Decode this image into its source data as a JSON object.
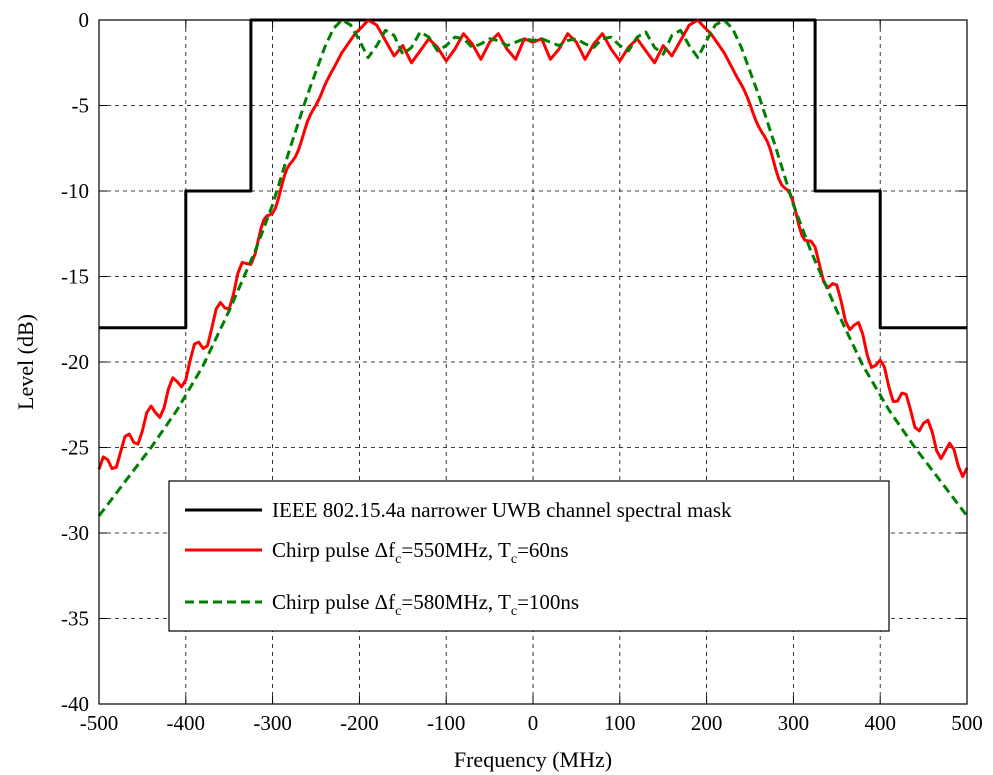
{
  "chart_data": {
    "type": "line",
    "title": "",
    "xlabel": "Frequency (MHz)",
    "ylabel": "Level (dB)",
    "xlim": [
      -500,
      500
    ],
    "ylim": [
      -40,
      0
    ],
    "xticks": [
      -500,
      -400,
      -300,
      -200,
      -100,
      0,
      100,
      200,
      300,
      400,
      500
    ],
    "yticks": [
      0,
      -5,
      -10,
      -15,
      -20,
      -25,
      -30,
      -35,
      -40
    ],
    "grid": true,
    "legend": {
      "placement": "lower-center",
      "entries": [
        {
          "main": "IEEE 802.15.4a narrower UWB channel spectral mask",
          "pre": "",
          "sub": "",
          "post": "",
          "sub2": "",
          "post2": ""
        },
        {
          "main": "",
          "pre": "Chirp pulse Δf",
          "sub": "c",
          "post": "=550MHz, T",
          "sub2": "c",
          "post2": "=60ns"
        },
        {
          "main": "",
          "pre": "Chirp pulse Δf",
          "sub": "c",
          "post": "=580MHz, T",
          "sub2": "c",
          "post2": "=100ns"
        }
      ]
    },
    "series": [
      {
        "color": "#000000",
        "style": "solid",
        "x": [
          -500,
          -400,
          -400,
          -325,
          -325,
          325,
          325,
          400,
          400,
          500
        ],
        "y": [
          -18,
          -18,
          -10,
          -10,
          0,
          0,
          -10,
          -10,
          -18,
          -18
        ]
      },
      {
        "color": "#ff0000",
        "style": "solid",
        "ripple": 0.7,
        "x": [
          -500,
          -470,
          -440,
          -410,
          -380,
          -350,
          -320,
          -300,
          -280,
          -260,
          -240,
          -220,
          -205,
          -195,
          -190,
          -180,
          -170,
          -160,
          -150,
          -140,
          -130,
          -120,
          -110,
          -100,
          -90,
          -80,
          -70,
          -60,
          -50,
          -40,
          -30,
          -20,
          -10,
          0,
          10,
          20,
          30,
          40,
          50,
          60,
          70,
          80,
          90,
          100,
          110,
          120,
          130,
          140,
          150,
          160,
          170,
          180,
          190,
          195,
          205,
          220,
          240,
          260,
          280,
          300,
          320,
          350,
          380,
          410,
          440,
          470,
          500
        ],
        "y": [
          -26.5,
          -25,
          -23.2,
          -21.3,
          -18.8,
          -16.2,
          -13.3,
          -11,
          -8.6,
          -6.1,
          -3.8,
          -1.9,
          -0.8,
          -0.3,
          0,
          -0.3,
          -1.2,
          -2.1,
          -1.5,
          -2.5,
          -1.8,
          -1.1,
          -1.6,
          -2.4,
          -1.7,
          -0.8,
          -1.4,
          -2.3,
          -1.3,
          -0.8,
          -1.7,
          -2.3,
          -1.1,
          -1.3,
          -1.1,
          -2.3,
          -1.7,
          -0.8,
          -1.3,
          -2.3,
          -1.4,
          -0.8,
          -1.7,
          -2.4,
          -1.6,
          -1.1,
          -1.8,
          -2.5,
          -1.5,
          -2.1,
          -1.2,
          -0.3,
          0,
          -0.3,
          -0.8,
          -1.9,
          -3.8,
          -6.1,
          -8.6,
          -11,
          -13.3,
          -16.2,
          -18.8,
          -21.3,
          -23.2,
          -25,
          -26.2
        ]
      },
      {
        "color": "#008000",
        "style": "dashed",
        "x": [
          -500,
          -470,
          -440,
          -410,
          -380,
          -350,
          -320,
          -300,
          -280,
          -260,
          -250,
          -240,
          -230,
          -220,
          -210,
          -200,
          -190,
          -180,
          -170,
          -160,
          -150,
          -140,
          -130,
          -120,
          -110,
          -100,
          -90,
          -80,
          -70,
          -60,
          -50,
          -40,
          -30,
          -20,
          -10,
          0,
          10,
          20,
          30,
          40,
          50,
          60,
          70,
          80,
          90,
          100,
          110,
          120,
          130,
          140,
          150,
          160,
          170,
          180,
          190,
          200,
          210,
          220,
          230,
          240,
          250,
          260,
          280,
          300,
          320,
          350,
          380,
          410,
          440,
          470,
          500
        ],
        "y": [
          -29,
          -27,
          -25,
          -22.8,
          -20.2,
          -17,
          -13.5,
          -10.8,
          -7.5,
          -4.4,
          -3,
          -1.6,
          -0.5,
          0,
          -0.3,
          -1.2,
          -2.2,
          -1.5,
          -0.6,
          -0.9,
          -2,
          -1.6,
          -0.7,
          -1,
          -1.8,
          -1.5,
          -1,
          -1.1,
          -1.6,
          -1.4,
          -1.1,
          -1.2,
          -1.5,
          -1.3,
          -1.1,
          -1.2,
          -1.1,
          -1.3,
          -1.5,
          -1.2,
          -1.1,
          -1.4,
          -1.6,
          -1.1,
          -1,
          -1.5,
          -1.8,
          -1,
          -0.7,
          -1.6,
          -2,
          -0.9,
          -0.6,
          -1.5,
          -2.2,
          -1.2,
          -0.3,
          0,
          -0.5,
          -1.6,
          -3,
          -4.4,
          -7.5,
          -10.8,
          -13.5,
          -17,
          -20.2,
          -22.8,
          -25,
          -27,
          -29
        ]
      }
    ]
  }
}
